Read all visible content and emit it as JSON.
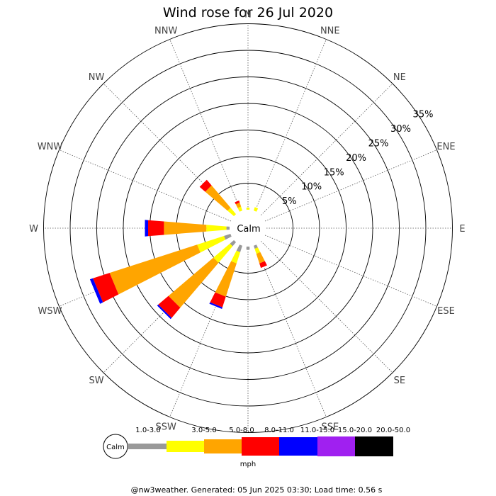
{
  "chart_data": {
    "type": "wind-rose",
    "title": "Wind rose for 26 Jul 2020",
    "directions": [
      "N",
      "NNE",
      "NE",
      "ENE",
      "E",
      "ESE",
      "SE",
      "SSE",
      "S",
      "SSW",
      "SW",
      "WSW",
      "W",
      "WNW",
      "NW",
      "NNW"
    ],
    "ring_labels": [
      "5%",
      "10%",
      "15%",
      "20%",
      "25%",
      "30%",
      "35%"
    ],
    "ring_values": [
      5,
      10,
      15,
      20,
      25,
      30,
      35
    ],
    "calm_label": "Calm",
    "speed_unit": "mph",
    "speed_bins": [
      {
        "label": "1.0-3.0",
        "color": "#999999"
      },
      {
        "label": "3.0-5.0",
        "color": "#ffff00"
      },
      {
        "label": "5.0-8.0",
        "color": "#ffa500"
      },
      {
        "label": "8.0-11.0",
        "color": "#ff0000"
      },
      {
        "label": "11.0-15.0",
        "color": "#0000ff"
      },
      {
        "label": "15.0-20.0",
        "color": "#a020f0"
      },
      {
        "label": "20.0-50.0",
        "color": "#000000"
      }
    ],
    "cumulative_percent": {
      "N": [
        0.0,
        0.4,
        0.4,
        0.4,
        0.4,
        0.4,
        0.4
      ],
      "NNE": [
        0.0,
        0.7,
        0.7,
        0.7,
        0.7,
        0.7,
        0.7
      ],
      "NE": [
        0.0,
        0.0,
        0.0,
        0.0,
        0.0,
        0.0,
        0.0
      ],
      "ENE": [
        0.0,
        0.0,
        0.0,
        0.0,
        0.0,
        0.0,
        0.0
      ],
      "E": [
        0.0,
        0.0,
        0.0,
        0.0,
        0.0,
        0.0,
        0.0
      ],
      "ESE": [
        0.0,
        0.0,
        0.0,
        0.0,
        0.0,
        0.0,
        0.0
      ],
      "SE": [
        0.0,
        0.0,
        0.0,
        0.0,
        0.0,
        0.0,
        0.0
      ],
      "SSE": [
        0.6,
        1.6,
        3.5,
        4.4,
        4.4,
        4.4,
        4.4
      ],
      "S": [
        0.6,
        0.6,
        0.6,
        0.6,
        0.6,
        0.6,
        0.6
      ],
      "SSW": [
        1.3,
        3.5,
        10.1,
        12.2,
        12.5,
        12.5,
        12.5
      ],
      "SW": [
        1.0,
        5.1,
        16.2,
        18.7,
        19.0,
        19.0,
        19.0
      ],
      "WSW": [
        1.3,
        6.6,
        23.9,
        27.2,
        27.8,
        27.8,
        27.8
      ],
      "W": [
        0.6,
        4.4,
        12.4,
        15.4,
        16.0,
        16.0,
        16.0
      ],
      "WNW": [
        0.0,
        0.0,
        0.0,
        0.0,
        0.0,
        0.0,
        0.0
      ],
      "NW": [
        0.0,
        1.6,
        7.1,
        8.5,
        8.5,
        8.5,
        8.5
      ],
      "NNW": [
        0.0,
        0.8,
        1.6,
        2.0,
        2.0,
        2.0,
        2.0
      ]
    }
  },
  "footer": "@nw3weather. Generated: 05 Jun 2025 03:30; Load time: 0.56 s"
}
